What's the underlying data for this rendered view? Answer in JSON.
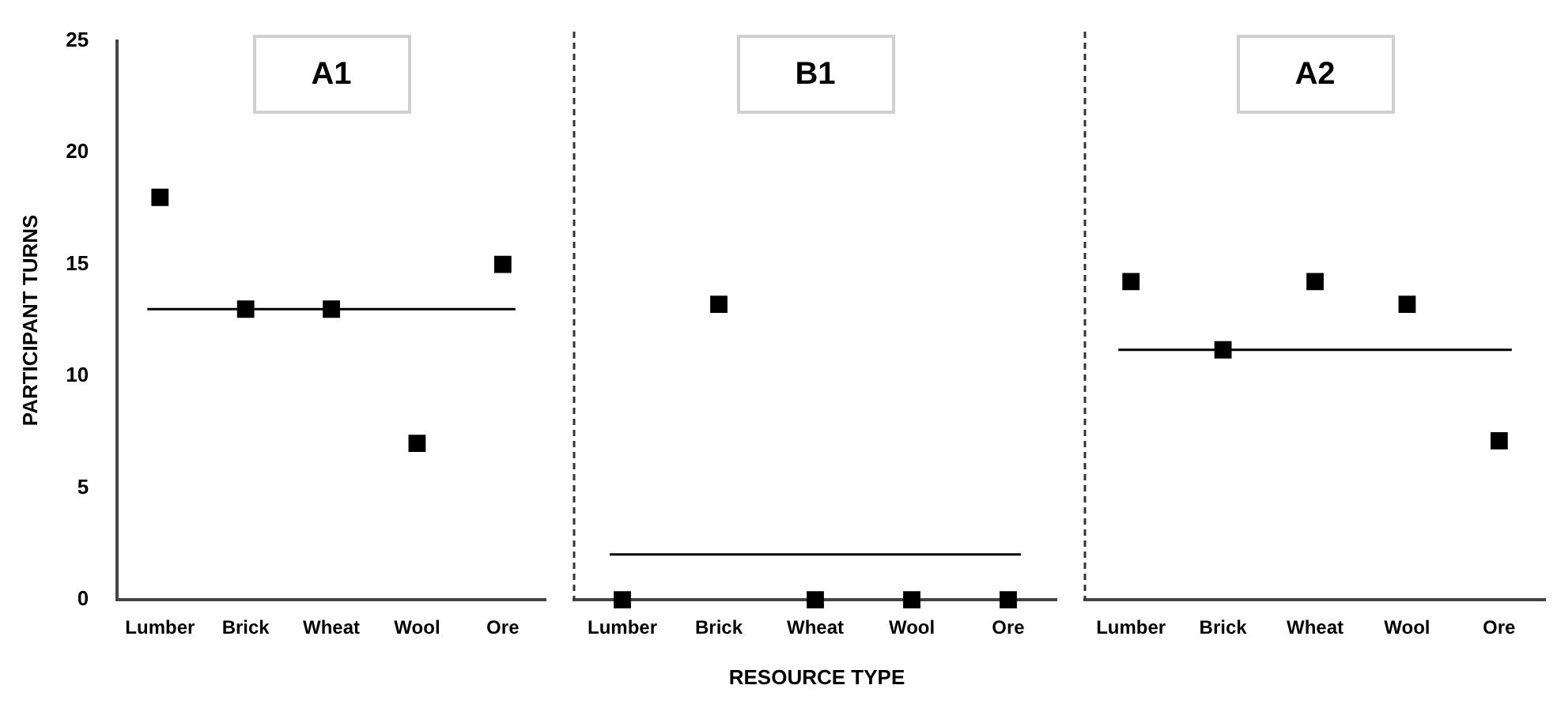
{
  "chart_data": [
    {
      "type": "scatter",
      "title": "A1",
      "ylabel": "PARTICIPANT TURNS",
      "categories": [
        "Lumber",
        "Brick",
        "Wheat",
        "Wool",
        "Ore"
      ],
      "values": [
        18,
        13,
        13,
        7,
        15
      ],
      "color": "#000000",
      "marker": "square",
      "ylim": [
        0,
        25
      ],
      "yticks": [
        0,
        5,
        10,
        15,
        20,
        25
      ],
      "ref_lines": [
        {
          "axis": "y",
          "value": 13,
          "color": "#000000"
        }
      ]
    },
    {
      "type": "scatter",
      "title": "B1",
      "xlabel": "RESOURCE TYPE",
      "categories": [
        "Lumber",
        "Brick",
        "Wheat",
        "Wool",
        "Ore"
      ],
      "values": [
        0,
        13,
        0,
        0,
        0
      ],
      "color": "#000000",
      "marker": "square",
      "ylim": [
        0,
        25
      ],
      "yticks": [
        0,
        5,
        10,
        15,
        20,
        25
      ],
      "tick_labels": "x",
      "ref_lines": [
        {
          "axis": "y",
          "value": 2,
          "color": "#000000"
        }
      ]
    },
    {
      "type": "scatter",
      "title": "A2",
      "categories": [
        "Lumber",
        "Brick",
        "Wheat",
        "Wool",
        "Ore"
      ],
      "values": [
        14,
        11,
        14,
        13,
        7
      ],
      "color": "#000000",
      "marker": "square",
      "ylim": [
        0,
        25
      ],
      "yticks": [
        0,
        5,
        10,
        15,
        20,
        25
      ],
      "tick_labels": "x",
      "ref_lines": [
        {
          "axis": "y",
          "value": 11,
          "color": "#000000"
        }
      ]
    }
  ]
}
